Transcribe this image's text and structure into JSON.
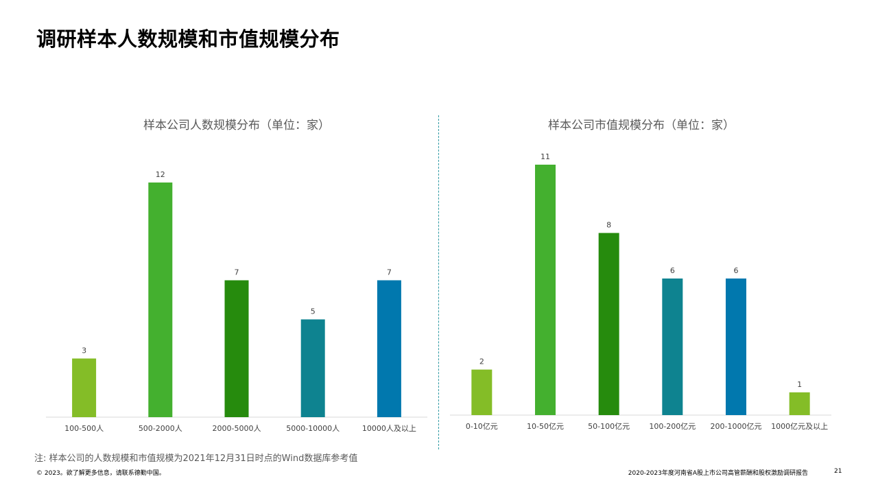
{
  "page": {
    "title": "调研样本人数规模和市值规模分布",
    "note": "注: 样本公司的人数规模和市值规模为2021年12月31日时点的Wind数据库参考值",
    "copyright": "© 2023。欲了解更多信息，请联系德勤中国。",
    "report_name": "2020-2023年度河南省A股上市公司高管薪酬和股权激励调研报告",
    "page_number": "21"
  },
  "chart_data": [
    {
      "type": "bar",
      "title": "样本公司人数规模分布（单位：家）",
      "categories": [
        "100-500人",
        "500-2000人",
        "2000-5000人",
        "5000-10000人",
        "10000人及以上"
      ],
      "values": [
        3,
        12,
        7,
        5,
        7
      ],
      "colors": [
        "#84bd27",
        "#44b02f",
        "#268b0d",
        "#0e8390",
        "#0178ae"
      ],
      "ylim": [
        0,
        12
      ],
      "grid": false,
      "legend": "none"
    },
    {
      "type": "bar",
      "title": "样本公司市值规模分布（单位：家）",
      "categories": [
        "0-10亿元",
        "10-50亿元",
        "50-100亿元",
        "100-200亿元",
        "200-1000亿元",
        "1000亿元及以上"
      ],
      "values": [
        2,
        11,
        8,
        6,
        6,
        1
      ],
      "colors": [
        "#84bd27",
        "#44b02f",
        "#268b0d",
        "#0e8390",
        "#0178ae",
        "#84bd27"
      ],
      "ylim": [
        0,
        11
      ],
      "grid": false,
      "legend": "none"
    }
  ]
}
